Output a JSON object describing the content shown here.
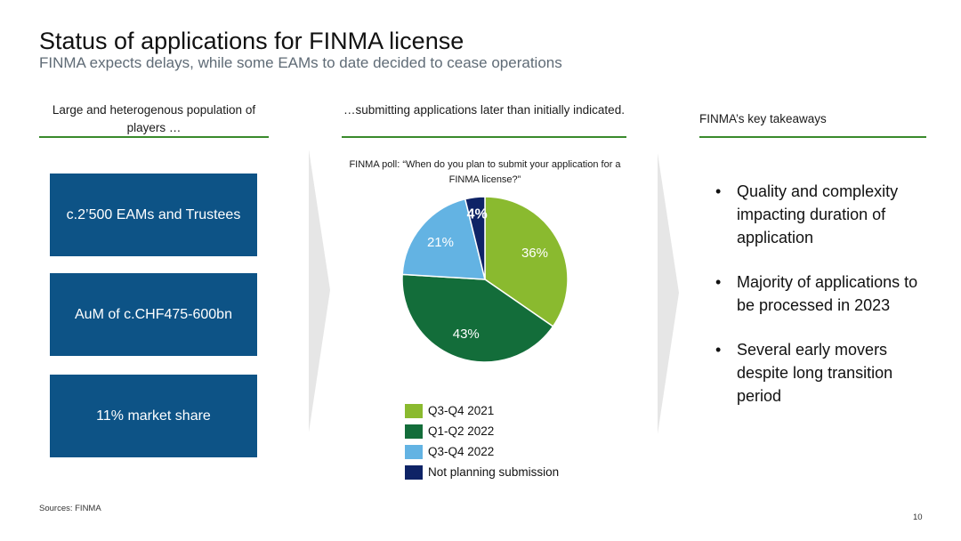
{
  "header": {
    "title": "Status of applications for FINMA license",
    "subtitle": "FINMA expects delays, while some EAMs to date decided to cease operations"
  },
  "columns": {
    "left_heading": "Large and heterogenous population of players …",
    "middle_heading": "…submitting applications later than initially indicated.",
    "right_heading": "FINMA’s key takeaways"
  },
  "boxes": [
    "c.2’500 EAMs and Trustees",
    "AuM of c.CHF475-600bn",
    "11% market share"
  ],
  "poll_title": "FINMA poll: “When do you plan to submit your application for a FINMA license?”",
  "takeaways": [
    "Quality and complexity impacting duration of application",
    "Majority of applications to be processed in 2023",
    "Several early movers despite long transition period"
  ],
  "bullet_glyph": "•",
  "footer": {
    "sources": "Sources: FINMA",
    "page_number": "10"
  },
  "colors": {
    "box_blue": "#0d5386",
    "rule_green": "#3a8a2c",
    "q3q4_2021": "#8aba2f",
    "q1q2_2022": "#136d3a",
    "q3q4_2022": "#63b3e3",
    "not_planning": "#0e2366"
  },
  "chart_data": {
    "type": "pie",
    "title": "FINMA poll: “When do you plan to submit your application for a FINMA license?”",
    "categories": [
      "Q3-Q4 2021",
      "Q1-Q2 2022",
      "Q3-Q4 2022",
      "Not planning submission"
    ],
    "values": [
      36,
      43,
      21,
      4
    ],
    "labels": [
      "36%",
      "43%",
      "21%",
      "4%"
    ],
    "colors": [
      "#8aba2f",
      "#136d3a",
      "#63b3e3",
      "#0e2366"
    ],
    "label_colors": [
      "#ffffff",
      "#ffffff",
      "#ffffff",
      "#ffffff"
    ],
    "legend_position": "bottom"
  }
}
